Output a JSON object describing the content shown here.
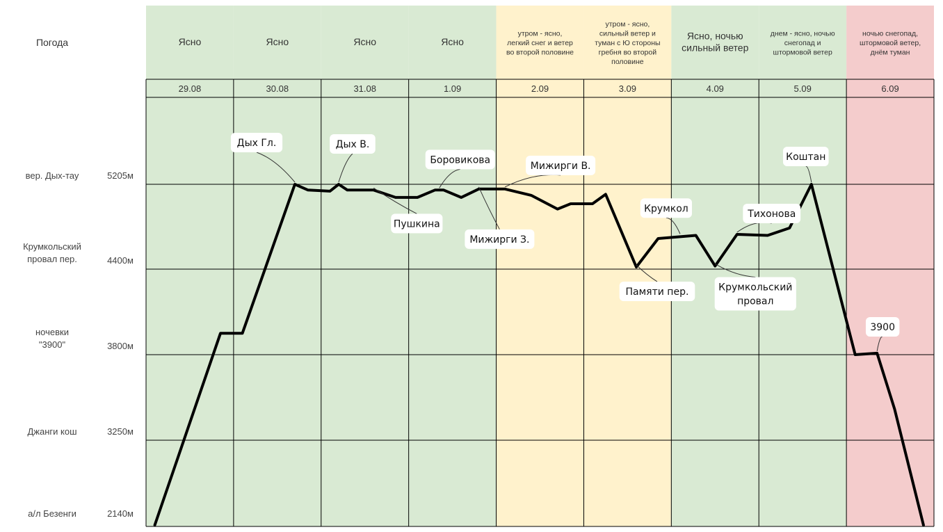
{
  "chart_data": {
    "type": "line",
    "title": "",
    "header_label": "Погода",
    "colors": {
      "green": "#d9ead3",
      "yellow": "#fff2cc",
      "red": "#f4cccc",
      "line": "#000000",
      "grid": "#000000"
    },
    "days": [
      {
        "date": "29.08",
        "weather": "Ясно",
        "bg": "green"
      },
      {
        "date": "30.08",
        "weather": "Ясно",
        "bg": "green"
      },
      {
        "date": "31.08",
        "weather": "Ясно",
        "bg": "green"
      },
      {
        "date": "1.09",
        "weather": "Ясно",
        "bg": "green"
      },
      {
        "date": "2.09",
        "weather": "утром - ясно, легкий снег и ветер во второй половине",
        "bg": "yellow"
      },
      {
        "date": "3.09",
        "weather": "утром - ясно, сильный ветер и туман с Ю стороны гребня во второй половине",
        "bg": "yellow"
      },
      {
        "date": "4.09",
        "weather": "Ясно, ночью сильный ветер",
        "bg": "green"
      },
      {
        "date": "5.09",
        "weather": "днем - ясно, ночью снегопад и штормовой ветер",
        "bg": "green"
      },
      {
        "date": "6.09",
        "weather": "ночью снегопад, штормовой ветер, днём туман",
        "bg": "red"
      }
    ],
    "levels": [
      {
        "name": "вер. Дых-тау",
        "altitude": 5205,
        "alt_label": "5205м"
      },
      {
        "name": "Крумкольский провал пер.",
        "altitude": 4400,
        "alt_label": "4400м"
      },
      {
        "name": "ночевки \"3900\"",
        "altitude": 3800,
        "alt_label": "3800м"
      },
      {
        "name": "Джанги кош",
        "altitude": 3250,
        "alt_label": "3250м"
      },
      {
        "name": "а/л Безенги",
        "altitude": 2140,
        "alt_label": "2140м"
      }
    ],
    "x_range": [
      0,
      9
    ],
    "profile": [
      {
        "t": 0.1,
        "alt": 2140
      },
      {
        "t": 0.85,
        "alt": 3950
      },
      {
        "t": 1.1,
        "alt": 3950
      },
      {
        "t": 1.7,
        "alt": 5205
      },
      {
        "t": 1.85,
        "alt": 5150
      },
      {
        "t": 2.1,
        "alt": 5140
      },
      {
        "t": 2.2,
        "alt": 5205
      },
      {
        "t": 2.3,
        "alt": 5150
      },
      {
        "t": 2.6,
        "alt": 5150
      },
      {
        "t": 2.85,
        "alt": 5080
      },
      {
        "t": 3.1,
        "alt": 5080
      },
      {
        "t": 3.3,
        "alt": 5150
      },
      {
        "t": 3.4,
        "alt": 5150
      },
      {
        "t": 3.6,
        "alt": 5080
      },
      {
        "t": 3.8,
        "alt": 5160
      },
      {
        "t": 4.1,
        "alt": 5160
      },
      {
        "t": 4.4,
        "alt": 5100
      },
      {
        "t": 4.7,
        "alt": 4970
      },
      {
        "t": 4.85,
        "alt": 5020
      },
      {
        "t": 5.1,
        "alt": 5020
      },
      {
        "t": 5.25,
        "alt": 5110
      },
      {
        "t": 5.6,
        "alt": 4420
      },
      {
        "t": 5.85,
        "alt": 4690
      },
      {
        "t": 6.28,
        "alt": 4720
      },
      {
        "t": 6.5,
        "alt": 4430
      },
      {
        "t": 6.75,
        "alt": 4730
      },
      {
        "t": 7.1,
        "alt": 4720
      },
      {
        "t": 7.35,
        "alt": 4790
      },
      {
        "t": 7.6,
        "alt": 5205
      },
      {
        "t": 8.1,
        "alt": 3800
      },
      {
        "t": 8.35,
        "alt": 3810
      },
      {
        "t": 8.55,
        "alt": 3450
      },
      {
        "t": 8.88,
        "alt": 2140
      }
    ],
    "annotations": [
      {
        "text": "Дых Гл.",
        "t": 1.7,
        "alt": 5205
      },
      {
        "text": "Дых В.",
        "t": 2.2,
        "alt": 5205
      },
      {
        "text": "Пушкина",
        "t": 2.6,
        "alt": 5150
      },
      {
        "text": "Боровикова",
        "t": 3.35,
        "alt": 5150
      },
      {
        "text": "Мижирги З.",
        "t": 3.8,
        "alt": 5160
      },
      {
        "text": "Мижирги В.",
        "t": 4.1,
        "alt": 5160
      },
      {
        "text": "Памяти пер.",
        "t": 5.6,
        "alt": 4420
      },
      {
        "text": "Крумкол",
        "t": 6.1,
        "alt": 4715
      },
      {
        "text": "Крумкольский провал",
        "t": 6.5,
        "alt": 4430
      },
      {
        "text": "Тихонова",
        "t": 6.75,
        "alt": 4730
      },
      {
        "text": "Коштан",
        "t": 7.6,
        "alt": 5205
      },
      {
        "text": "3900",
        "t": 8.35,
        "alt": 3810
      }
    ]
  }
}
